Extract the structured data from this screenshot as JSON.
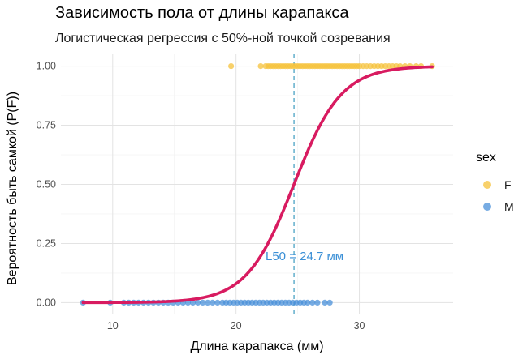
{
  "title": "Зависимость пола от длины карапакса",
  "subtitle": "Логистическая регрессия с 50%-ной точкой созревания",
  "chart_data": {
    "type": "scatter",
    "title": "Зависимость пола от длины карапакса",
    "subtitle": "Логистическая регрессия с 50%-ной точкой созревания",
    "xlabel": "Длина карапакса (мм)",
    "ylabel": "Вероятность быть самкой (P(F))",
    "xlim": [
      5.8,
      37.6
    ],
    "ylim": [
      -0.05,
      1.05
    ],
    "x_ticks": [
      10,
      20,
      30
    ],
    "y_ticks": [
      0.0,
      0.25,
      0.5,
      0.75,
      1.0
    ],
    "y_tick_labels": [
      "0.00",
      "0.25",
      "0.50",
      "0.75",
      "1.00"
    ],
    "grid": true,
    "legend": {
      "title": "sex",
      "position": "right",
      "entries": [
        {
          "label": "F",
          "color": "#F5C13A"
        },
        {
          "label": "M",
          "color": "#4A90D9"
        }
      ]
    },
    "series": [
      {
        "name": "F",
        "color": "#F5C13A",
        "points": [
          [
            19.6,
            1
          ],
          [
            22.0,
            1
          ],
          [
            22.4,
            1
          ],
          [
            22.6,
            1
          ],
          [
            22.8,
            1
          ],
          [
            23.0,
            1
          ],
          [
            23.2,
            1
          ],
          [
            23.4,
            1
          ],
          [
            23.6,
            1
          ],
          [
            23.8,
            1
          ],
          [
            24.0,
            1
          ],
          [
            24.2,
            1
          ],
          [
            24.4,
            1
          ],
          [
            24.6,
            1
          ],
          [
            24.8,
            1
          ],
          [
            25.0,
            1
          ],
          [
            25.2,
            1
          ],
          [
            25.4,
            1
          ],
          [
            25.6,
            1
          ],
          [
            25.8,
            1
          ],
          [
            26.0,
            1
          ],
          [
            26.2,
            1
          ],
          [
            26.4,
            1
          ],
          [
            26.6,
            1
          ],
          [
            26.8,
            1
          ],
          [
            27.0,
            1
          ],
          [
            27.2,
            1
          ],
          [
            27.4,
            1
          ],
          [
            27.6,
            1
          ],
          [
            27.8,
            1
          ],
          [
            28.0,
            1
          ],
          [
            28.2,
            1
          ],
          [
            28.4,
            1
          ],
          [
            28.6,
            1
          ],
          [
            28.8,
            1
          ],
          [
            29.0,
            1
          ],
          [
            29.2,
            1
          ],
          [
            29.4,
            1
          ],
          [
            29.6,
            1
          ],
          [
            29.8,
            1
          ],
          [
            30.0,
            1
          ],
          [
            30.3,
            1
          ],
          [
            30.6,
            1
          ],
          [
            30.9,
            1
          ],
          [
            31.2,
            1
          ],
          [
            31.5,
            1
          ],
          [
            31.8,
            1
          ],
          [
            32.1,
            1
          ],
          [
            32.4,
            1
          ],
          [
            32.7,
            1
          ],
          [
            33.0,
            1
          ],
          [
            33.3,
            1
          ],
          [
            33.7,
            1
          ],
          [
            34.1,
            1
          ],
          [
            34.6,
            1
          ],
          [
            35.0,
            1
          ],
          [
            35.9,
            1
          ]
        ]
      },
      {
        "name": "M",
        "color": "#4A90D9",
        "points": [
          [
            7.6,
            0
          ],
          [
            9.8,
            0
          ],
          [
            10.9,
            0
          ],
          [
            11.3,
            0
          ],
          [
            11.7,
            0
          ],
          [
            12.1,
            0
          ],
          [
            12.5,
            0
          ],
          [
            12.9,
            0
          ],
          [
            13.3,
            0
          ],
          [
            13.7,
            0
          ],
          [
            14.1,
            0
          ],
          [
            14.5,
            0
          ],
          [
            14.9,
            0
          ],
          [
            15.3,
            0
          ],
          [
            15.7,
            0
          ],
          [
            16.1,
            0
          ],
          [
            16.5,
            0
          ],
          [
            16.9,
            0
          ],
          [
            17.3,
            0
          ],
          [
            17.7,
            0
          ],
          [
            18.1,
            0
          ],
          [
            18.5,
            0
          ],
          [
            18.9,
            0
          ],
          [
            19.2,
            0
          ],
          [
            19.5,
            0
          ],
          [
            19.8,
            0
          ],
          [
            20.1,
            0
          ],
          [
            20.4,
            0
          ],
          [
            20.7,
            0
          ],
          [
            21.0,
            0
          ],
          [
            21.3,
            0
          ],
          [
            21.6,
            0
          ],
          [
            21.9,
            0
          ],
          [
            22.2,
            0
          ],
          [
            22.5,
            0
          ],
          [
            22.8,
            0
          ],
          [
            23.1,
            0
          ],
          [
            23.4,
            0
          ],
          [
            23.7,
            0
          ],
          [
            24.0,
            0
          ],
          [
            24.3,
            0
          ],
          [
            24.6,
            0
          ],
          [
            24.9,
            0
          ],
          [
            25.2,
            0
          ],
          [
            25.5,
            0
          ],
          [
            25.8,
            0
          ],
          [
            26.2,
            0
          ],
          [
            26.6,
            0
          ],
          [
            27.2,
            0
          ],
          [
            27.6,
            0
          ]
        ]
      }
    ],
    "fit": {
      "type": "logistic",
      "color": "#D81B60",
      "x_range": [
        7.6,
        35.9
      ],
      "l50": 24.7,
      "slope": 0.52
    },
    "annotation": {
      "text": "L50 = 24.7 мм",
      "x": 24.7,
      "color": "#3A8FD6"
    },
    "vline": {
      "x": 24.7,
      "color": "#3A9ABF",
      "style": "dashed"
    }
  }
}
